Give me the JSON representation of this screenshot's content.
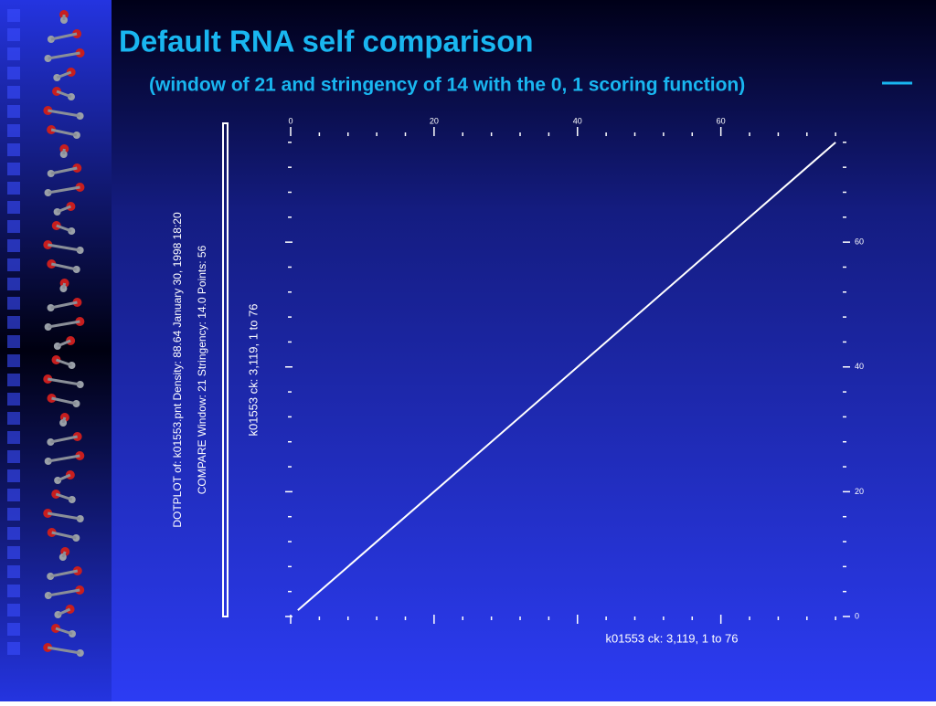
{
  "chart_data": {
    "type": "line",
    "title": "Default RNA self comparison",
    "subtitle": "(window of 21 and stringency of 14 with the 0, 1 scoring function)",
    "annotations": [
      "DOTPLOT of: k01553.pnt  Density: 88.64  January 30, 1998 18:20",
      "COMPARE  Window: 21  Stringency: 14.0  Points: 56"
    ],
    "xlabel": "k01553 ck: 3,119, 1 to 76",
    "ylabel": "k01553 ck: 3,119, 1 to 76",
    "x": [
      1,
      76
    ],
    "series": [
      {
        "color": "#ffffff",
        "values": [
          1,
          76
        ]
      }
    ],
    "xlim": [
      0,
      77
    ],
    "ylim": [
      0,
      77
    ],
    "xticks": [
      0,
      20,
      40,
      60
    ],
    "yticks": [
      0,
      20,
      40,
      60
    ],
    "xminorticks": [
      4,
      8,
      12,
      16,
      24,
      28,
      32,
      36,
      44,
      48,
      52,
      56,
      64,
      68,
      72,
      76
    ],
    "yminorticks": [
      4,
      8,
      12,
      16,
      24,
      28,
      32,
      36,
      44,
      48,
      52,
      56,
      64,
      68,
      72,
      76
    ]
  }
}
